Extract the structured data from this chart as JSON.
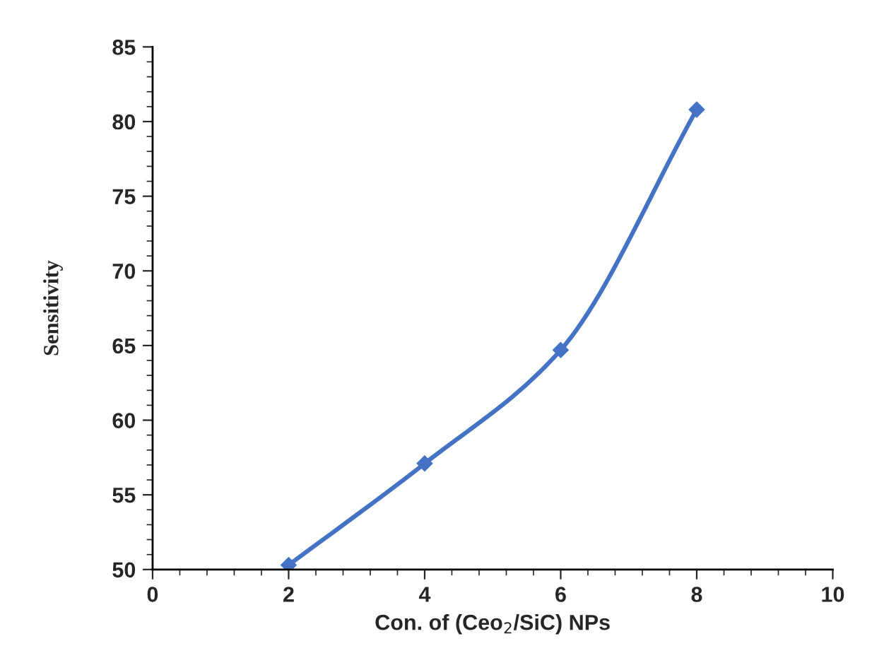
{
  "chart_data": {
    "type": "line",
    "xlabel": "Con. of (Ceo$_{2}$/SiC) NPs",
    "ylabel": "Sensitivity",
    "x": [
      2,
      4,
      6,
      8
    ],
    "series": [
      {
        "color": "#4472c4",
        "values": [
          50.3,
          57.1,
          64.7,
          80.8
        ]
      }
    ],
    "xlim": [
      0,
      10
    ],
    "xticks": [
      0,
      2,
      4,
      6,
      8,
      10
    ],
    "ylim": [
      50,
      85
    ],
    "yticks": [
      50,
      55,
      60,
      65,
      70,
      75,
      80,
      85
    ],
    "marker": "diamond",
    "line_style": "solid",
    "grid": false,
    "legend": false
  }
}
